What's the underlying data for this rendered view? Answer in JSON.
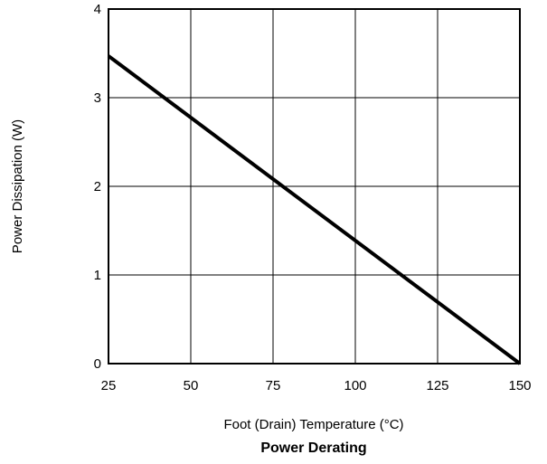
{
  "chart_data": {
    "type": "line",
    "title": "Power Derating",
    "xlabel": "Foot (Drain) Temperature (°C)",
    "ylabel": "Power Dissipation (W)",
    "xlim": [
      25,
      150
    ],
    "ylim": [
      0,
      4
    ],
    "x_ticks": [
      "25",
      "50",
      "75",
      "100",
      "125",
      "150"
    ],
    "y_ticks": [
      "0",
      "1",
      "2",
      "3",
      "4"
    ],
    "grid": true,
    "series": [
      {
        "x": [
          25,
          150
        ],
        "y": [
          3.47,
          0
        ]
      }
    ],
    "colors": {
      "line": "#000000",
      "grid": "#000000",
      "frame": "#000000"
    }
  }
}
